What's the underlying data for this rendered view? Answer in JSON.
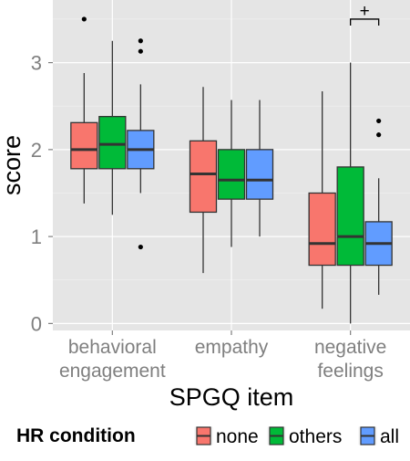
{
  "chart_data": {
    "type": "box",
    "title": "",
    "xlabel": "SPGQ item",
    "ylabel": "score",
    "ylim": [
      -0.08,
      3.72
    ],
    "yticks": [
      0,
      1,
      2,
      3
    ],
    "grid": true,
    "background": "#e5e5e5",
    "legend": {
      "title": "HR condition",
      "position": "bottom",
      "entries": [
        "none",
        "others",
        "all"
      ]
    },
    "categories": [
      {
        "key": "behavioral-engagement",
        "label_lines": [
          "behavioral",
          "engagement"
        ]
      },
      {
        "key": "empathy",
        "label_lines": [
          "empathy"
        ]
      },
      {
        "key": "negative-feelings",
        "label_lines": [
          "negative",
          "feelings"
        ]
      }
    ],
    "series": [
      {
        "name": "none",
        "color": "#f8766d",
        "boxes": [
          {
            "min": 1.38,
            "q1": 1.78,
            "median": 2.0,
            "q3": 2.31,
            "max": 2.88,
            "outliers": [
              3.5
            ]
          },
          {
            "min": 0.58,
            "q1": 1.28,
            "median": 1.72,
            "q3": 2.1,
            "max": 2.72,
            "outliers": []
          },
          {
            "min": 0.17,
            "q1": 0.67,
            "median": 0.92,
            "q3": 1.5,
            "max": 2.67,
            "outliers": []
          }
        ]
      },
      {
        "name": "others",
        "color": "#00ba38",
        "boxes": [
          {
            "min": 1.25,
            "q1": 1.78,
            "median": 2.06,
            "q3": 2.38,
            "max": 3.25,
            "outliers": []
          },
          {
            "min": 0.88,
            "q1": 1.43,
            "median": 1.65,
            "q3": 2.0,
            "max": 2.57,
            "outliers": []
          },
          {
            "min": 0.0,
            "q1": 0.67,
            "median": 1.0,
            "q3": 1.8,
            "max": 3.0,
            "outliers": []
          }
        ]
      },
      {
        "name": "all",
        "color": "#619cff",
        "boxes": [
          {
            "min": 1.5,
            "q1": 1.78,
            "median": 2.0,
            "q3": 2.22,
            "max": 2.75,
            "outliers": [
              0.88,
              3.13,
              3.25
            ]
          },
          {
            "min": 1.0,
            "q1": 1.43,
            "median": 1.65,
            "q3": 2.0,
            "max": 2.57,
            "outliers": []
          },
          {
            "min": 0.33,
            "q1": 0.67,
            "median": 0.92,
            "q3": 1.17,
            "max": 1.67,
            "outliers": [
              2.17,
              2.33
            ]
          }
        ]
      }
    ],
    "annotations": [
      {
        "text": "+",
        "category": "negative-feelings",
        "from_series": "others",
        "to_series": "all",
        "y": 3.5
      }
    ]
  }
}
